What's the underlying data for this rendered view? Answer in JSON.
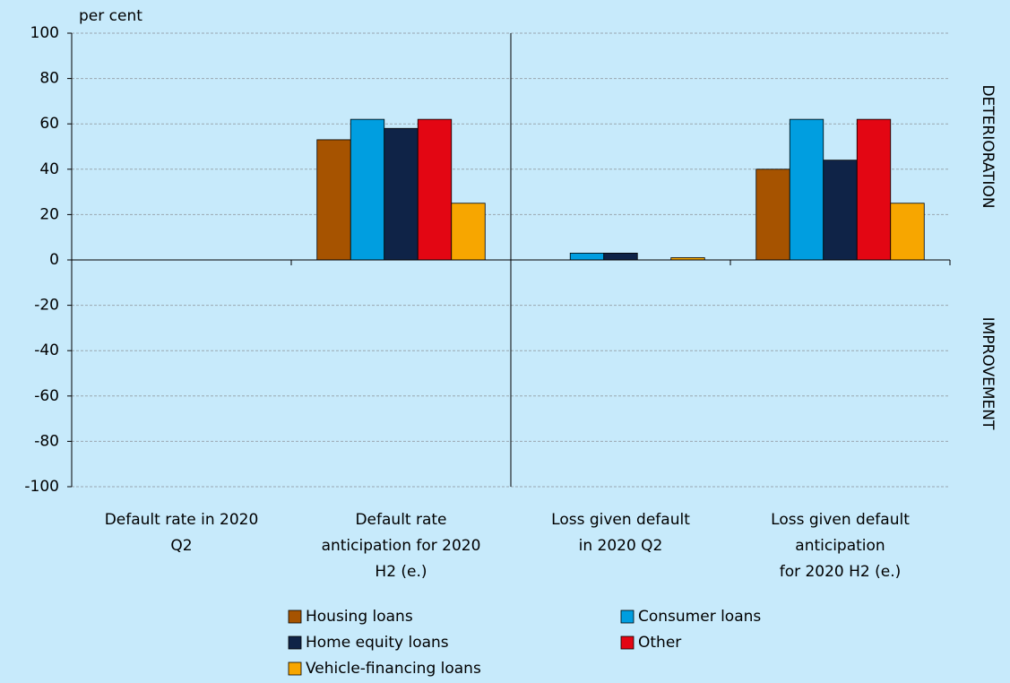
{
  "chart_data": {
    "type": "bar",
    "unit_label": "per cent",
    "side_labels": [
      "DETERIORATION",
      "IMPROVEMENT"
    ],
    "categories": [
      [
        "Default rate in 2020",
        "Q2"
      ],
      [
        "Default rate",
        "anticipation for 2020",
        "H2 (e.)"
      ],
      [
        "Loss given default",
        "in 2020 Q2"
      ],
      [
        "Loss given default",
        "anticipation",
        "for 2020 H2 (e.)"
      ]
    ],
    "series": [
      {
        "name": "Housing loans",
        "color": "#a65300",
        "values": [
          0,
          53,
          0,
          40
        ]
      },
      {
        "name": "Consumer loans",
        "color": "#009ee0",
        "values": [
          0,
          62,
          3,
          62
        ]
      },
      {
        "name": "Home equity loans",
        "color": "#0f2347",
        "values": [
          0,
          58,
          3,
          44
        ]
      },
      {
        "name": "Other",
        "color": "#e30613",
        "values": [
          0,
          62,
          0,
          62
        ]
      },
      {
        "name": "Vehicle-financing loans",
        "color": "#f7a600",
        "values": [
          0,
          25,
          1,
          25
        ]
      }
    ],
    "ylim": [
      -100,
      100
    ],
    "yticks": [
      -100,
      -80,
      -60,
      -40,
      -20,
      0,
      20,
      40,
      60,
      80,
      100
    ],
    "grid": true
  }
}
